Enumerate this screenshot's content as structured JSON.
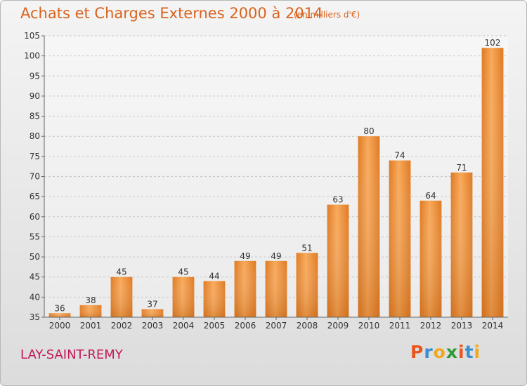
{
  "header": {
    "title": "Achats et Charges Externes 2000 à 2014",
    "subtitle": "(en milliers d'€)"
  },
  "footer": {
    "place": "LAY-SAINT-REMY",
    "logo": [
      "P",
      "r",
      "o",
      "x",
      "i",
      "t",
      "i"
    ]
  },
  "colors": {
    "title": "#d9631e",
    "place": "#c2185b",
    "bar_light": "#f8a95a",
    "bar_dark": "#df7a22",
    "logo": [
      "#e8551e",
      "#3c8fd0",
      "#f0a81e",
      "#2f9a3a",
      "#e8551e",
      "#3c8fd0",
      "#f0a81e"
    ]
  },
  "chart_data": {
    "type": "bar",
    "title": "Achats et Charges Externes 2000 à 2014",
    "subtitle": "(en milliers d'€)",
    "categories": [
      "2000",
      "2001",
      "2002",
      "2003",
      "2004",
      "2005",
      "2006",
      "2007",
      "2008",
      "2009",
      "2010",
      "2011",
      "2012",
      "2013",
      "2014"
    ],
    "values": [
      36,
      38,
      45,
      37,
      45,
      44,
      49,
      49,
      51,
      63,
      80,
      74,
      64,
      71,
      102
    ],
    "ylim": [
      35,
      105
    ],
    "yticks": [
      35,
      40,
      45,
      50,
      55,
      60,
      65,
      70,
      75,
      80,
      85,
      90,
      95,
      100,
      105
    ],
    "xlabel": "",
    "ylabel": "",
    "grid": "horizontal-dashed",
    "legend": "none"
  }
}
